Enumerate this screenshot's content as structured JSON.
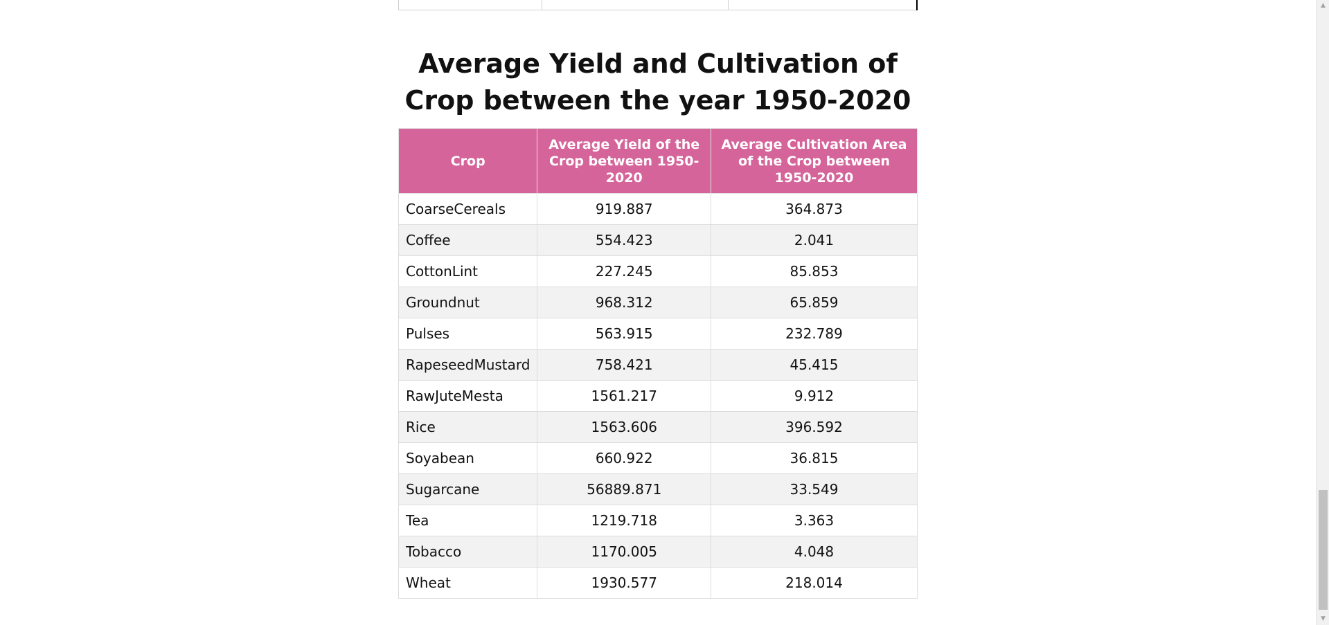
{
  "section": {
    "title": "Average Yield and Cultivation of Crop between the year 1950-2020"
  },
  "table": {
    "headers": [
      "Crop",
      "Average Yield of the Crop between 1950-2020",
      "Average Cultivation Area of the Crop between 1950-2020"
    ],
    "rows": [
      [
        "CoarseCereals",
        "919.887",
        "364.873"
      ],
      [
        "Coffee",
        "554.423",
        "2.041"
      ],
      [
        "CottonLint",
        "227.245",
        "85.853"
      ],
      [
        "Groundnut",
        "968.312",
        "65.859"
      ],
      [
        "Pulses",
        "563.915",
        "232.789"
      ],
      [
        "RapeseedMustard",
        "758.421",
        "45.415"
      ],
      [
        "RawJuteMesta",
        "1561.217",
        "9.912"
      ],
      [
        "Rice",
        "1563.606",
        "396.592"
      ],
      [
        "Soyabean",
        "660.922",
        "36.815"
      ],
      [
        "Sugarcane",
        "56889.871",
        "33.549"
      ],
      [
        "Tea",
        "1219.718",
        "3.363"
      ],
      [
        "Tobacco",
        "1170.005",
        "4.048"
      ],
      [
        "Wheat",
        "1930.577",
        "218.014"
      ]
    ]
  },
  "colors": {
    "header_bg": "#d5649a",
    "header_text": "#ffffff",
    "row_alt": "#f2f2f2"
  },
  "icons": {
    "scroll_up": "triangle-up-icon",
    "scroll_down": "triangle-down-icon"
  }
}
